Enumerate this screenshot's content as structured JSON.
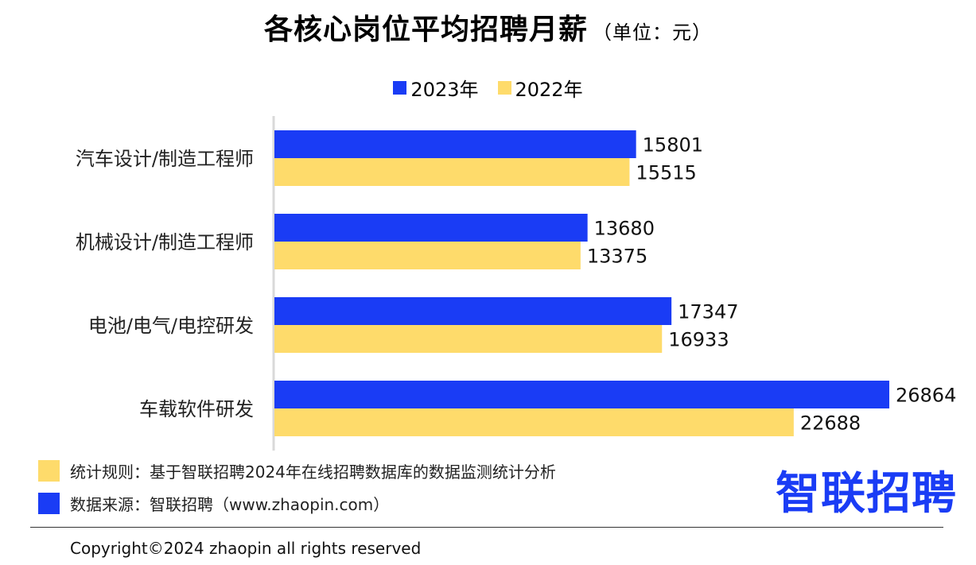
{
  "title": "各核心岗位平均招聘月薪",
  "unit": "（单位：元）",
  "colors": {
    "series_2023": "#1a3cf5",
    "series_2022": "#fedb6b"
  },
  "chart_data": {
    "type": "bar",
    "orientation": "horizontal",
    "categories": [
      "汽车设计/制造工程师",
      "机械设计/制造工程师",
      "电池/电气/电控研发",
      "车载软件研发"
    ],
    "series": [
      {
        "name": "2023年",
        "values": [
          15801,
          13680,
          17347,
          26864
        ]
      },
      {
        "name": "2022年",
        "values": [
          15515,
          13375,
          16933,
          22688
        ]
      }
    ],
    "xlim": [
      0,
      27500
    ],
    "grid": false,
    "legend_position": "top-center"
  },
  "notes": {
    "rule": "统计规则：基于智联招聘2024年在线招聘数据库的数据监测统计分析",
    "source": "数据来源：智联招聘（www.zhaopin.com）"
  },
  "brand": {
    "logo_text": "智联招聘",
    "icon": "zhaopin-logo"
  },
  "copyright": "Copyright©2024 zhaopin all rights reserved"
}
